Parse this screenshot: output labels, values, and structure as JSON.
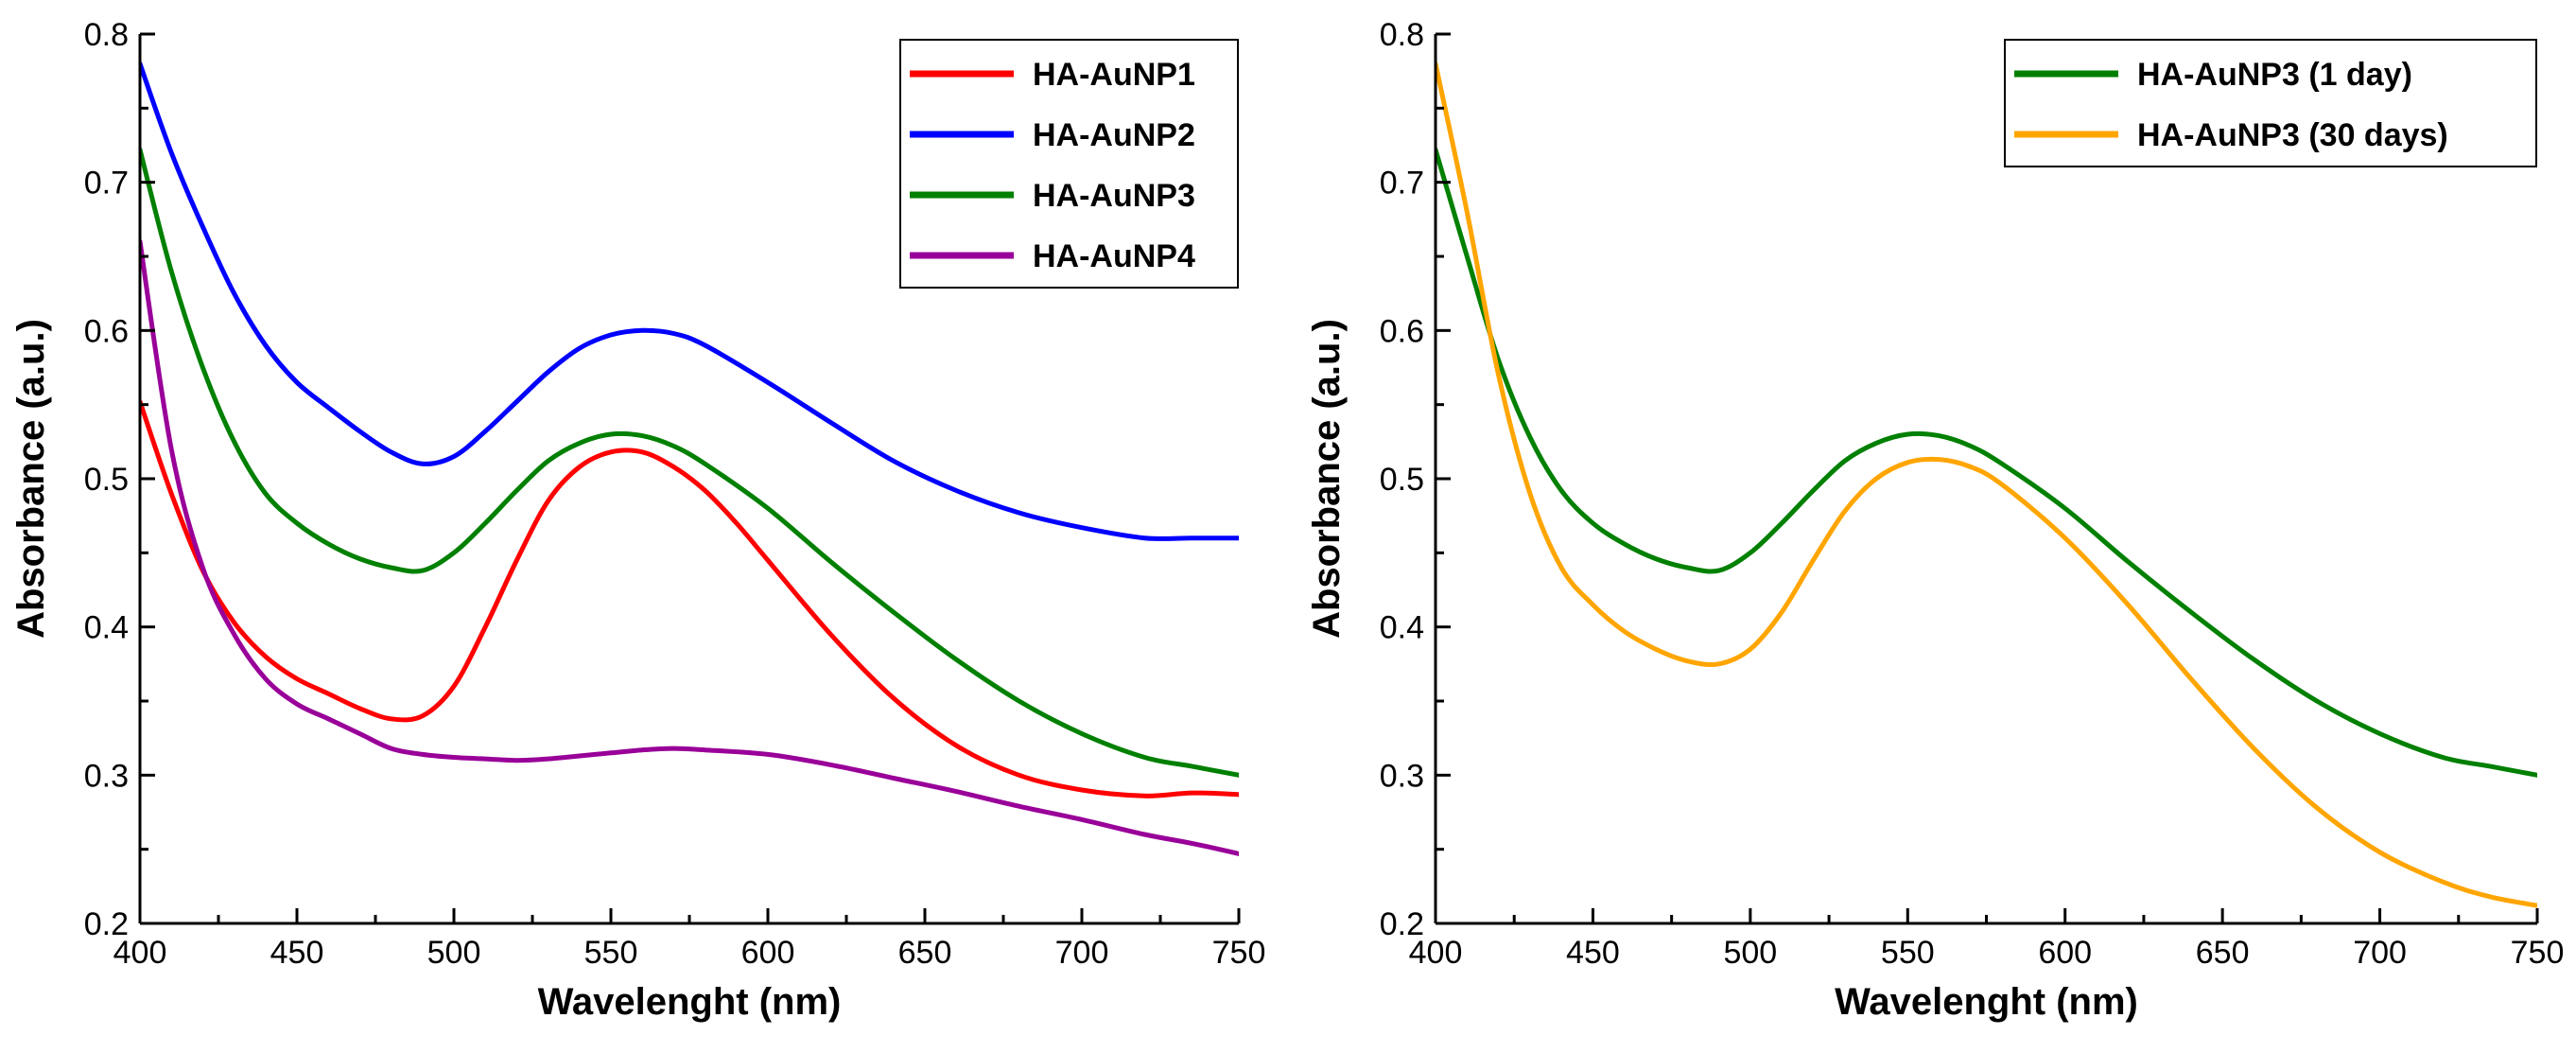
{
  "chart_data": [
    {
      "type": "line",
      "title": "",
      "xlabel": "Wavelenght (nm)",
      "ylabel": "Absorbance (a.u.)",
      "xlim": [
        400,
        750
      ],
      "ylim": [
        0.2,
        0.8
      ],
      "x_ticks": [
        "400",
        "450",
        "500",
        "550",
        "600",
        "650",
        "700",
        "750"
      ],
      "y_ticks": [
        "0.2",
        "0.3",
        "0.4",
        "0.5",
        "0.6",
        "0.7",
        "0.8"
      ],
      "grid": false,
      "legend_position": "top-right",
      "series": [
        {
          "name": "HA-AuNP1",
          "color": "#ff0000",
          "points": [
            [
              400,
              0.552
            ],
            [
              410,
              0.49
            ],
            [
              420,
              0.438
            ],
            [
              430,
              0.403
            ],
            [
              440,
              0.38
            ],
            [
              450,
              0.365
            ],
            [
              460,
              0.355
            ],
            [
              470,
              0.345
            ],
            [
              480,
              0.338
            ],
            [
              490,
              0.34
            ],
            [
              500,
              0.36
            ],
            [
              510,
              0.4
            ],
            [
              520,
              0.445
            ],
            [
              530,
              0.485
            ],
            [
              540,
              0.508
            ],
            [
              550,
              0.518
            ],
            [
              560,
              0.518
            ],
            [
              570,
              0.508
            ],
            [
              580,
              0.492
            ],
            [
              590,
              0.47
            ],
            [
              600,
              0.445
            ],
            [
              620,
              0.395
            ],
            [
              640,
              0.352
            ],
            [
              660,
              0.32
            ],
            [
              680,
              0.3
            ],
            [
              700,
              0.29
            ],
            [
              720,
              0.286
            ],
            [
              735,
              0.288
            ],
            [
              750,
              0.287
            ]
          ]
        },
        {
          "name": "HA-AuNP2",
          "color": "#0000ff",
          "points": [
            [
              400,
              0.78
            ],
            [
              410,
              0.72
            ],
            [
              420,
              0.67
            ],
            [
              430,
              0.625
            ],
            [
              440,
              0.59
            ],
            [
              450,
              0.565
            ],
            [
              460,
              0.548
            ],
            [
              470,
              0.532
            ],
            [
              480,
              0.518
            ],
            [
              490,
              0.51
            ],
            [
              500,
              0.515
            ],
            [
              510,
              0.532
            ],
            [
              520,
              0.552
            ],
            [
              530,
              0.572
            ],
            [
              540,
              0.588
            ],
            [
              550,
              0.597
            ],
            [
              560,
              0.6
            ],
            [
              570,
              0.598
            ],
            [
              580,
              0.59
            ],
            [
              600,
              0.565
            ],
            [
              620,
              0.538
            ],
            [
              640,
              0.512
            ],
            [
              660,
              0.492
            ],
            [
              680,
              0.477
            ],
            [
              700,
              0.467
            ],
            [
              720,
              0.46
            ],
            [
              735,
              0.46
            ],
            [
              750,
              0.46
            ]
          ]
        },
        {
          "name": "HA-AuNP3",
          "color": "#008000",
          "points": [
            [
              400,
              0.722
            ],
            [
              410,
              0.64
            ],
            [
              420,
              0.575
            ],
            [
              430,
              0.525
            ],
            [
              440,
              0.49
            ],
            [
              450,
              0.47
            ],
            [
              460,
              0.456
            ],
            [
              470,
              0.446
            ],
            [
              480,
              0.44
            ],
            [
              490,
              0.438
            ],
            [
              500,
              0.45
            ],
            [
              510,
              0.47
            ],
            [
              520,
              0.492
            ],
            [
              530,
              0.512
            ],
            [
              540,
              0.524
            ],
            [
              550,
              0.53
            ],
            [
              560,
              0.529
            ],
            [
              570,
              0.522
            ],
            [
              580,
              0.51
            ],
            [
              600,
              0.48
            ],
            [
              620,
              0.444
            ],
            [
              640,
              0.41
            ],
            [
              660,
              0.378
            ],
            [
              680,
              0.35
            ],
            [
              700,
              0.328
            ],
            [
              720,
              0.312
            ],
            [
              735,
              0.306
            ],
            [
              750,
              0.3
            ]
          ]
        },
        {
          "name": "HA-AuNP4",
          "color": "#990099",
          "points": [
            [
              400,
              0.66
            ],
            [
              410,
              0.52
            ],
            [
              420,
              0.44
            ],
            [
              430,
              0.395
            ],
            [
              440,
              0.365
            ],
            [
              450,
              0.348
            ],
            [
              460,
              0.338
            ],
            [
              470,
              0.328
            ],
            [
              480,
              0.318
            ],
            [
              490,
              0.314
            ],
            [
              500,
              0.312
            ],
            [
              510,
              0.311
            ],
            [
              520,
              0.31
            ],
            [
              530,
              0.311
            ],
            [
              540,
              0.313
            ],
            [
              550,
              0.315
            ],
            [
              560,
              0.317
            ],
            [
              570,
              0.318
            ],
            [
              580,
              0.317
            ],
            [
              600,
              0.314
            ],
            [
              620,
              0.307
            ],
            [
              640,
              0.298
            ],
            [
              660,
              0.289
            ],
            [
              680,
              0.279
            ],
            [
              700,
              0.27
            ],
            [
              720,
              0.26
            ],
            [
              735,
              0.254
            ],
            [
              750,
              0.247
            ]
          ]
        }
      ]
    },
    {
      "type": "line",
      "title": "",
      "xlabel": "Wavelenght (nm)",
      "ylabel": "Absorbance (a.u.)",
      "xlim": [
        400,
        750
      ],
      "ylim": [
        0.2,
        0.8
      ],
      "x_ticks": [
        "400",
        "450",
        "500",
        "550",
        "600",
        "650",
        "700",
        "750"
      ],
      "y_ticks": [
        "0.2",
        "0.3",
        "0.4",
        "0.5",
        "0.6",
        "0.7",
        "0.8"
      ],
      "grid": false,
      "legend_position": "top-right",
      "series": [
        {
          "name": "HA-AuNP3 (1 day)",
          "color": "#008000",
          "points": [
            [
              400,
              0.722
            ],
            [
              410,
              0.65
            ],
            [
              420,
              0.58
            ],
            [
              430,
              0.528
            ],
            [
              440,
              0.492
            ],
            [
              450,
              0.47
            ],
            [
              460,
              0.456
            ],
            [
              470,
              0.446
            ],
            [
              480,
              0.44
            ],
            [
              490,
              0.438
            ],
            [
              500,
              0.45
            ],
            [
              510,
              0.47
            ],
            [
              520,
              0.492
            ],
            [
              530,
              0.512
            ],
            [
              540,
              0.524
            ],
            [
              550,
              0.53
            ],
            [
              560,
              0.529
            ],
            [
              570,
              0.522
            ],
            [
              580,
              0.51
            ],
            [
              600,
              0.48
            ],
            [
              620,
              0.444
            ],
            [
              640,
              0.41
            ],
            [
              660,
              0.378
            ],
            [
              680,
              0.35
            ],
            [
              700,
              0.328
            ],
            [
              720,
              0.312
            ],
            [
              735,
              0.306
            ],
            [
              750,
              0.3
            ]
          ]
        },
        {
          "name": "HA-AuNP3 (30 days)",
          "color": "#ffa500",
          "points": [
            [
              400,
              0.78
            ],
            [
              410,
              0.68
            ],
            [
              420,
              0.57
            ],
            [
              430,
              0.49
            ],
            [
              440,
              0.44
            ],
            [
              450,
              0.415
            ],
            [
              460,
              0.397
            ],
            [
              470,
              0.385
            ],
            [
              480,
              0.377
            ],
            [
              490,
              0.375
            ],
            [
              500,
              0.385
            ],
            [
              510,
              0.41
            ],
            [
              520,
              0.445
            ],
            [
              530,
              0.478
            ],
            [
              540,
              0.5
            ],
            [
              550,
              0.511
            ],
            [
              560,
              0.513
            ],
            [
              570,
              0.508
            ],
            [
              580,
              0.496
            ],
            [
              600,
              0.46
            ],
            [
              620,
              0.415
            ],
            [
              640,
              0.365
            ],
            [
              660,
              0.318
            ],
            [
              680,
              0.278
            ],
            [
              700,
              0.248
            ],
            [
              720,
              0.228
            ],
            [
              735,
              0.218
            ],
            [
              750,
              0.212
            ]
          ]
        }
      ]
    }
  ]
}
